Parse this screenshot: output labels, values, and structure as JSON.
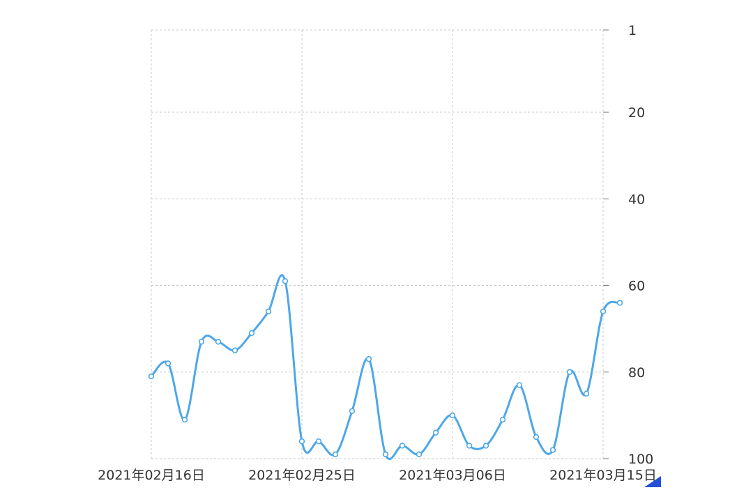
{
  "chart_data": {
    "type": "line",
    "smooth": true,
    "title": "",
    "xlabel": "",
    "ylabel": "",
    "y_axis_position": "right",
    "y_inverted": true,
    "ylim": [
      1,
      100
    ],
    "y_ticks": [
      1,
      20,
      40,
      60,
      80,
      100
    ],
    "x_tick_labels": [
      "2021年02月16日",
      "2021年02月25日",
      "2021年03月06日",
      "2021年03月15日"
    ],
    "x": [
      "2021-02-16",
      "2021-02-17",
      "2021-02-18",
      "2021-02-19",
      "2021-02-20",
      "2021-02-21",
      "2021-02-22",
      "2021-02-23",
      "2021-02-24",
      "2021-02-25",
      "2021-02-26",
      "2021-02-27",
      "2021-02-28",
      "2021-03-01",
      "2021-03-02",
      "2021-03-03",
      "2021-03-04",
      "2021-03-05",
      "2021-03-06",
      "2021-03-07",
      "2021-03-08",
      "2021-03-09",
      "2021-03-10",
      "2021-03-11",
      "2021-03-12",
      "2021-03-13",
      "2021-03-14",
      "2021-03-15",
      "2021-03-16"
    ],
    "series": [
      {
        "color": "#4da7e8",
        "values": [
          81,
          78,
          91,
          73,
          73,
          75,
          71,
          66,
          59,
          96,
          96,
          99,
          89,
          77,
          99,
          97,
          99,
          94,
          90,
          97,
          97,
          91,
          83,
          95,
          98,
          80,
          85,
          66,
          64
        ]
      }
    ],
    "grid": true,
    "legend": "none"
  },
  "colors": {
    "series": "#4da7e8",
    "grid": "#c8c8c8",
    "text": "#333333",
    "corner_mark": "#2450d6"
  }
}
